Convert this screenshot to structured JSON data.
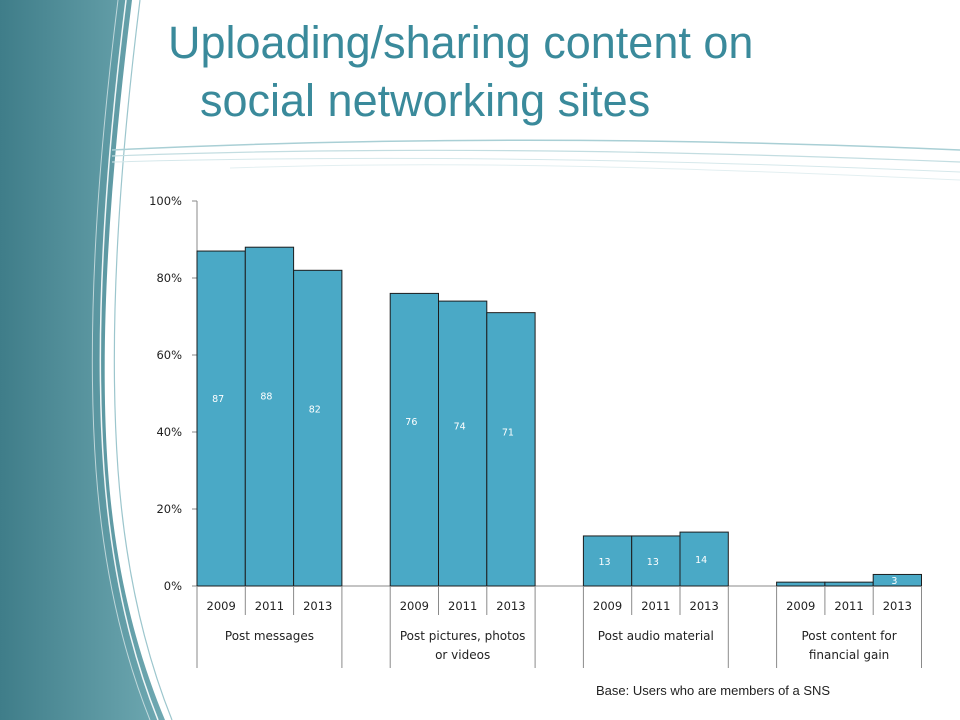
{
  "slide": {
    "title_line_1": "Uploading/sharing content on",
    "title_line_2": "social networking sites",
    "footnote": "Base: Users who are members of a SNS",
    "accent_color": "#3a8a9b"
  },
  "chart_data": {
    "type": "bar",
    "title": "",
    "xlabel": "",
    "ylabel": "",
    "ylim": [
      0,
      100
    ],
    "y_ticks": [
      "0%",
      "20%",
      "40%",
      "60%",
      "80%",
      "100%"
    ],
    "grid": false,
    "legend": "none",
    "bar_color": "#4aa9c6",
    "groups": [
      {
        "label": "Post messages",
        "categories": [
          "2009",
          "2011",
          "2013"
        ],
        "values": [
          87,
          88,
          82
        ],
        "data_labels": [
          "87",
          "88",
          "82"
        ]
      },
      {
        "label": "Post pictures, photos or videos",
        "categories": [
          "2009",
          "2011",
          "2013"
        ],
        "values": [
          76,
          74,
          71
        ],
        "data_labels": [
          "76",
          "74",
          "71"
        ]
      },
      {
        "label": "Post audio material",
        "categories": [
          "2009",
          "2011",
          "2013"
        ],
        "values": [
          13,
          13,
          14
        ],
        "data_labels": [
          "13",
          "13",
          "14"
        ]
      },
      {
        "label": "Post content for financial gain",
        "categories": [
          "2009",
          "2011",
          "2013"
        ],
        "values": [
          1,
          1,
          3
        ],
        "data_labels": [
          "",
          "",
          "3"
        ]
      }
    ]
  }
}
